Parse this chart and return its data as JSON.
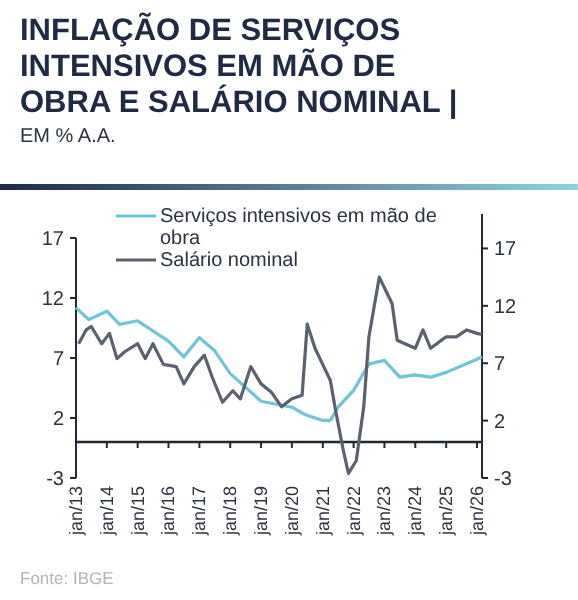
{
  "chart_data": {
    "type": "line",
    "title": "INFLAÇÃO DE SERVIÇOS INTENSIVOS EM MÃO DE OBRA E SALÁRIO NOMINAL |",
    "subtitle": "EM % A.A.",
    "annotations": [
      "Fonte: IBGE"
    ],
    "xlim": [
      "2013-01",
      "2026-03"
    ],
    "xticks": [
      {
        "value": "2013-01",
        "label": "jan/13"
      },
      {
        "value": "2014-01",
        "label": "jan/14"
      },
      {
        "value": "2015-01",
        "label": "jan/15"
      },
      {
        "value": "2016-01",
        "label": "jan/16"
      },
      {
        "value": "2017-01",
        "label": "jan/17"
      },
      {
        "value": "2018-01",
        "label": "jan/18"
      },
      {
        "value": "2019-01",
        "label": "jan/19"
      },
      {
        "value": "2020-01",
        "label": "jan/20"
      },
      {
        "value": "2021-01",
        "label": "jan/21"
      },
      {
        "value": "2022-01",
        "label": "jan/22"
      },
      {
        "value": "2023-01",
        "label": "jan/23"
      },
      {
        "value": "2024-01",
        "label": "jan/24"
      },
      {
        "value": "2025-01",
        "label": "jan/25"
      },
      {
        "value": "2026-01",
        "label": "jan/26"
      }
    ],
    "ylim": [
      -3,
      17
    ],
    "yticks": [
      -3,
      2,
      7,
      12,
      17
    ],
    "y2lim": [
      -3,
      20
    ],
    "y2ticks": [
      -3,
      2,
      7,
      12,
      17
    ],
    "grid": false,
    "legend": "top",
    "marker": "none",
    "line_style": "solid",
    "series": [
      {
        "name": "Serviços intensivos em mão de obra",
        "color": "#6cc5d8",
        "x": [
          "2013-01",
          "2013-06",
          "2014-01",
          "2014-06",
          "2015-01",
          "2016-01",
          "2016-07",
          "2017-01",
          "2017-07",
          "2018-01",
          "2019-01",
          "2020-01",
          "2020-06",
          "2021-01",
          "2021-04",
          "2021-07",
          "2022-01",
          "2022-07",
          "2023-01",
          "2023-07",
          "2024-01",
          "2024-07",
          "2025-01",
          "2026-01",
          "2026-03"
        ],
        "values": [
          11.2,
          10.2,
          10.9,
          9.8,
          10.1,
          8.4,
          7.1,
          8.7,
          7.6,
          5.7,
          3.4,
          2.9,
          2.3,
          1.8,
          1.8,
          2.9,
          4.3,
          6.5,
          6.8,
          5.4,
          5.6,
          5.4,
          5.8,
          6.9,
          7.1
        ]
      },
      {
        "name": "Salário nominal",
        "color": "#5a6270",
        "axis": "y2",
        "x": [
          "2013-02",
          "2013-05",
          "2013-07",
          "2013-11",
          "2014-02",
          "2014-05",
          "2014-08",
          "2015-01",
          "2015-04",
          "2015-07",
          "2015-11",
          "2016-04",
          "2016-07",
          "2016-11",
          "2017-03",
          "2017-06",
          "2017-10",
          "2018-02",
          "2018-05",
          "2018-09",
          "2019-01",
          "2019-05",
          "2019-09",
          "2020-01",
          "2020-05",
          "2020-07",
          "2020-10",
          "2021-02",
          "2021-04",
          "2021-06",
          "2021-09",
          "2021-11",
          "2022-02",
          "2022-05",
          "2022-07",
          "2022-11",
          "2023-02",
          "2023-04",
          "2023-06",
          "2023-09",
          "2024-01",
          "2024-04",
          "2024-07",
          "2025-01",
          "2025-05",
          "2025-09",
          "2026-01",
          "2026-03"
        ],
        "values": [
          8.7,
          9.9,
          10.2,
          8.7,
          9.6,
          7.4,
          8.0,
          8.7,
          7.4,
          8.7,
          6.9,
          6.7,
          5.2,
          6.7,
          7.7,
          5.8,
          3.6,
          4.6,
          3.9,
          6.7,
          5.2,
          4.5,
          3.2,
          3.9,
          4.2,
          10.4,
          8.3,
          6.4,
          5.5,
          2.9,
          -0.6,
          -2.6,
          -1.5,
          3.2,
          9.3,
          14.5,
          13.1,
          12.2,
          9.0,
          8.7,
          8.3,
          9.9,
          8.3,
          9.3,
          9.3,
          9.9,
          9.6,
          9.5
        ]
      }
    ]
  }
}
